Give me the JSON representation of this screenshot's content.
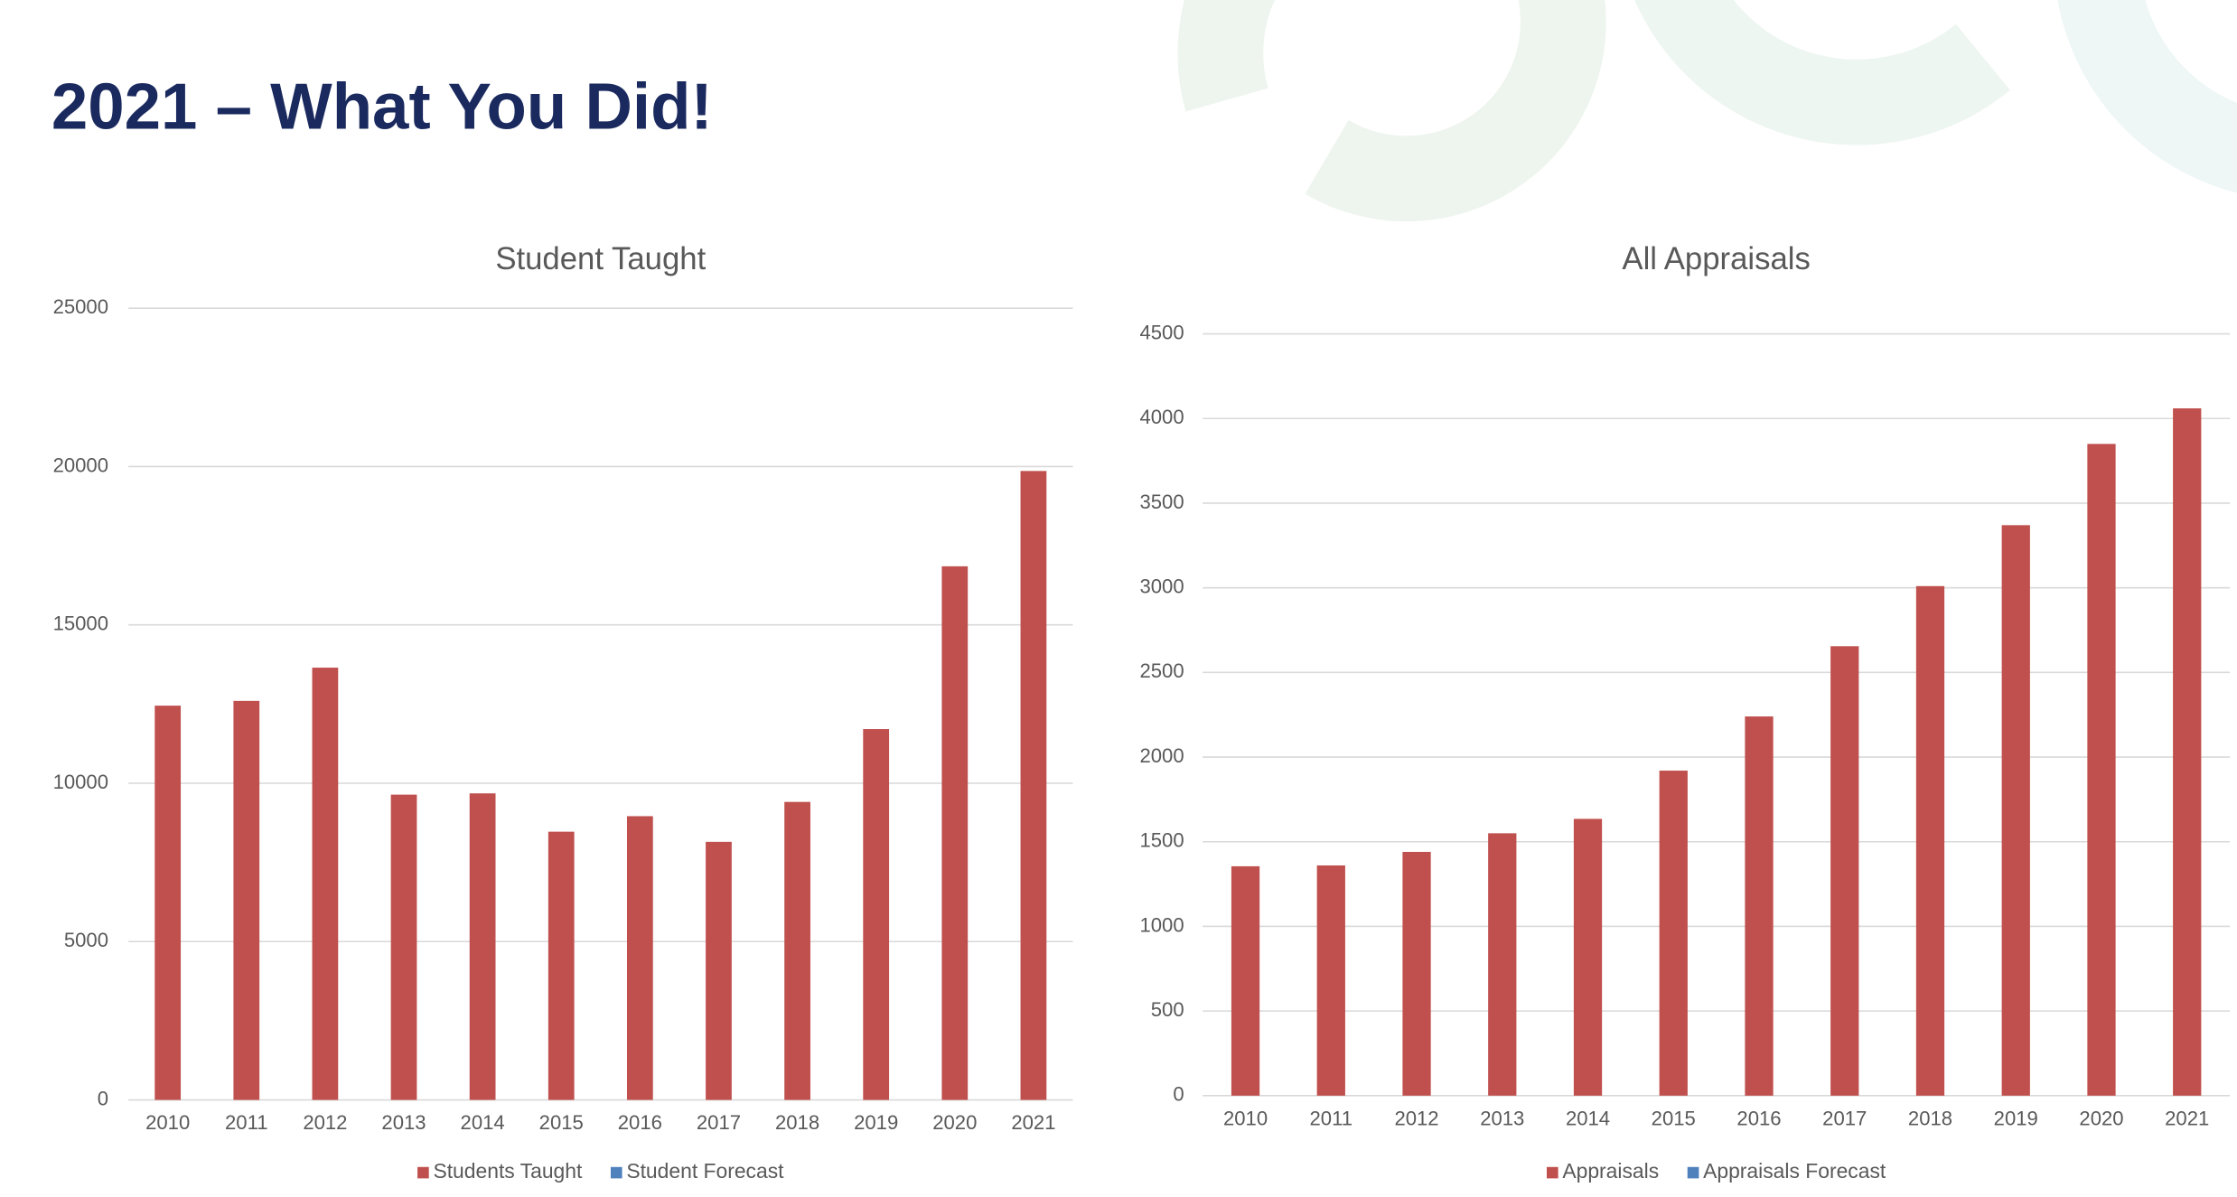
{
  "title": "2021 – What You Did!",
  "chart_data": [
    {
      "type": "bar",
      "title": "Student Taught",
      "categories": [
        "2010",
        "2011",
        "2012",
        "2013",
        "2014",
        "2015",
        "2016",
        "2017",
        "2018",
        "2019",
        "2020",
        "2021"
      ],
      "series": [
        {
          "name": "Students Taught",
          "color": "#c0504d",
          "values": [
            12450,
            12600,
            13650,
            9640,
            9680,
            8470,
            8960,
            8150,
            9410,
            11710,
            16850,
            19860
          ]
        },
        {
          "name": "Student Forecast",
          "color": "#4f81bd",
          "values": [
            null,
            null,
            null,
            null,
            null,
            null,
            null,
            null,
            null,
            null,
            null,
            null
          ]
        }
      ],
      "ylim": [
        0,
        25000
      ],
      "yticks": [
        0,
        5000,
        10000,
        15000,
        20000,
        25000
      ],
      "grid": true,
      "legend": "bottom"
    },
    {
      "type": "bar",
      "title": "All Appraisals",
      "categories": [
        "2010",
        "2011",
        "2012",
        "2013",
        "2014",
        "2015",
        "2016",
        "2017",
        "2018",
        "2019",
        "2020",
        "2021"
      ],
      "series": [
        {
          "name": "Appraisals",
          "color": "#c0504d",
          "values": [
            1355,
            1360,
            1440,
            1550,
            1635,
            1920,
            2240,
            2655,
            3010,
            3370,
            3850,
            4060
          ]
        },
        {
          "name": "Appraisals Forecast",
          "color": "#4f81bd",
          "values": [
            null,
            null,
            null,
            null,
            null,
            null,
            null,
            null,
            null,
            null,
            null,
            null
          ]
        }
      ],
      "ylim": [
        0,
        4500
      ],
      "yticks": [
        0,
        500,
        1000,
        1500,
        2000,
        2500,
        3000,
        3500,
        4000,
        4500
      ],
      "grid": true,
      "legend": "bottom"
    }
  ]
}
